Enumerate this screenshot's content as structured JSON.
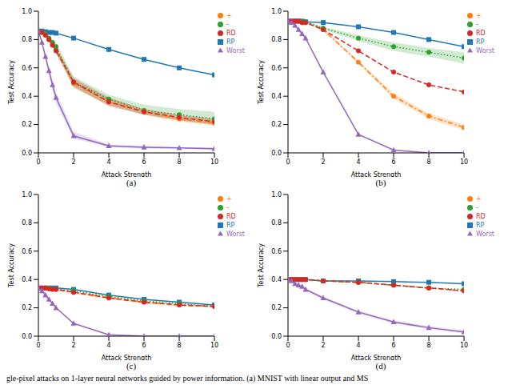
{
  "caption": "gle-pixel attacks on 1-layer neural networks guided by power information. (a) MNIST with linear output and MS",
  "chart_data": [
    {
      "type": "line",
      "title": "(a)",
      "x_label": "Attack Strength",
      "y_label": "Test Accuracy",
      "xlim": [
        0,
        10
      ],
      "xticks": [
        0,
        2,
        4,
        6,
        8,
        10
      ],
      "ylim": [
        0,
        1
      ],
      "yticks": [
        {
          "value": 0,
          "label": "0.0"
        },
        {
          "value": 0.2,
          "label": "0.2"
        },
        {
          "value": 0.4,
          "label": "0.4"
        },
        {
          "value": 0.6,
          "label": "0.6"
        },
        {
          "value": 0.8,
          "label": "0.8"
        },
        {
          "value": 1,
          "label": "1.0"
        }
      ],
      "grid": false,
      "legend": "upper right",
      "x": [
        0,
        0.2,
        0.4,
        0.6,
        0.8,
        1,
        2,
        4,
        6,
        8,
        10
      ],
      "series": [
        {
          "name": "RP",
          "color": "#1f77b4",
          "marker": "square",
          "line_style": "solid",
          "values": [
            0.86,
            0.86,
            0.855,
            0.85,
            0.85,
            0.845,
            0.81,
            0.73,
            0.66,
            0.6,
            0.55
          ]
        },
        {
          "name": "+",
          "color": "#ff7f0e",
          "marker": "circle",
          "line_style": "dashdot",
          "values": [
            0.86,
            0.85,
            0.83,
            0.8,
            0.77,
            0.73,
            0.49,
            0.36,
            0.29,
            0.24,
            0.21
          ],
          "lower": [
            0.86,
            0.85,
            0.82,
            0.79,
            0.75,
            0.71,
            0.46,
            0.33,
            0.27,
            0.22,
            0.19
          ],
          "upper": [
            0.86,
            0.85,
            0.84,
            0.81,
            0.78,
            0.75,
            0.52,
            0.39,
            0.31,
            0.26,
            0.24
          ]
        },
        {
          "name": "-",
          "color": "#2ca02c",
          "marker": "circle",
          "line_style": "dotted",
          "values": [
            0.86,
            0.85,
            0.84,
            0.81,
            0.78,
            0.75,
            0.5,
            0.38,
            0.3,
            0.27,
            0.24
          ],
          "lower": [
            0.86,
            0.85,
            0.83,
            0.8,
            0.76,
            0.72,
            0.46,
            0.34,
            0.27,
            0.23,
            0.2
          ],
          "upper": [
            0.86,
            0.86,
            0.85,
            0.82,
            0.8,
            0.78,
            0.54,
            0.41,
            0.34,
            0.31,
            0.29
          ]
        },
        {
          "name": "RD",
          "color": "#d62728",
          "marker": "circle",
          "line_style": "dashed",
          "values": [
            0.86,
            0.85,
            0.83,
            0.8,
            0.76,
            0.72,
            0.5,
            0.36,
            0.29,
            0.25,
            0.22
          ],
          "lower": [
            0.86,
            0.85,
            0.82,
            0.79,
            0.75,
            0.7,
            0.47,
            0.33,
            0.27,
            0.23,
            0.2
          ],
          "upper": [
            0.86,
            0.85,
            0.84,
            0.81,
            0.78,
            0.74,
            0.53,
            0.39,
            0.31,
            0.27,
            0.24
          ]
        },
        {
          "name": "Worst",
          "color": "#9467bd",
          "marker": "triangle",
          "line_style": "solid",
          "values": [
            0.86,
            0.78,
            0.68,
            0.58,
            0.48,
            0.39,
            0.12,
            0.05,
            0.04,
            0.035,
            0.03
          ],
          "lower": [
            0.86,
            0.77,
            0.66,
            0.55,
            0.44,
            0.35,
            0.1,
            0.04,
            0.03,
            0.03,
            0.02
          ],
          "upper": [
            0.86,
            0.79,
            0.7,
            0.61,
            0.52,
            0.43,
            0.15,
            0.06,
            0.05,
            0.04,
            0.04
          ]
        }
      ]
    },
    {
      "type": "line",
      "title": "(b)",
      "x_label": "Attack Strength",
      "y_label": "Test Accuracy",
      "xlim": [
        0,
        10
      ],
      "xticks": [
        0,
        2,
        4,
        6,
        8,
        10
      ],
      "ylim": [
        0,
        1
      ],
      "yticks": [
        {
          "value": 0,
          "label": "0.0"
        },
        {
          "value": 0.2,
          "label": "0.2"
        },
        {
          "value": 0.4,
          "label": "0.4"
        },
        {
          "value": 0.6,
          "label": "0.6"
        },
        {
          "value": 0.8,
          "label": "0.8"
        },
        {
          "value": 1,
          "label": "1.0"
        }
      ],
      "grid": false,
      "legend": "upper right",
      "x": [
        0,
        0.2,
        0.4,
        0.6,
        0.8,
        1,
        2,
        4,
        6,
        8,
        10
      ],
      "series": [
        {
          "name": "RP",
          "color": "#1f77b4",
          "marker": "square",
          "line_style": "solid",
          "values": [
            0.93,
            0.93,
            0.93,
            0.93,
            0.93,
            0.925,
            0.92,
            0.89,
            0.85,
            0.8,
            0.75
          ]
        },
        {
          "name": "+",
          "color": "#ff7f0e",
          "marker": "circle",
          "line_style": "dashdot",
          "values": [
            0.93,
            0.93,
            0.93,
            0.93,
            0.92,
            0.92,
            0.87,
            0.64,
            0.4,
            0.26,
            0.18
          ],
          "lower": [
            0.93,
            0.93,
            0.93,
            0.93,
            0.92,
            0.92,
            0.86,
            0.63,
            0.38,
            0.24,
            0.16
          ],
          "upper": [
            0.93,
            0.93,
            0.93,
            0.93,
            0.92,
            0.92,
            0.88,
            0.65,
            0.42,
            0.28,
            0.2
          ]
        },
        {
          "name": "-",
          "color": "#2ca02c",
          "marker": "circle",
          "line_style": "dotted",
          "values": [
            0.93,
            0.93,
            0.93,
            0.93,
            0.925,
            0.925,
            0.88,
            0.81,
            0.75,
            0.71,
            0.67
          ],
          "lower": [
            0.93,
            0.93,
            0.93,
            0.93,
            0.92,
            0.92,
            0.87,
            0.79,
            0.72,
            0.68,
            0.63
          ],
          "upper": [
            0.93,
            0.93,
            0.93,
            0.93,
            0.93,
            0.93,
            0.89,
            0.83,
            0.78,
            0.74,
            0.71
          ]
        },
        {
          "name": "RD",
          "color": "#d62728",
          "marker": "circle",
          "line_style": "dashed",
          "values": [
            0.93,
            0.93,
            0.93,
            0.93,
            0.92,
            0.92,
            0.87,
            0.72,
            0.57,
            0.48,
            0.43
          ]
        },
        {
          "name": "Worst",
          "color": "#9467bd",
          "marker": "triangle",
          "line_style": "solid",
          "values": [
            0.93,
            0.92,
            0.9,
            0.87,
            0.84,
            0.81,
            0.57,
            0.13,
            0.02,
            0,
            0
          ]
        }
      ]
    },
    {
      "type": "line",
      "title": "(c)",
      "x_label": "Attack Strength",
      "y_label": "Test Accuracy",
      "xlim": [
        0,
        10
      ],
      "xticks": [
        0,
        2,
        4,
        6,
        8,
        10
      ],
      "ylim": [
        0,
        1
      ],
      "yticks": [
        {
          "value": 0,
          "label": "0.0"
        },
        {
          "value": 0.2,
          "label": "0.2"
        },
        {
          "value": 0.4,
          "label": "0.4"
        },
        {
          "value": 0.6,
          "label": "0.6"
        },
        {
          "value": 0.8,
          "label": "0.8"
        },
        {
          "value": 1,
          "label": "1.0"
        }
      ],
      "grid": false,
      "legend": "upper right",
      "x": [
        0,
        0.2,
        0.4,
        0.6,
        0.8,
        1,
        2,
        4,
        6,
        8,
        10
      ],
      "series": [
        {
          "name": "RP",
          "color": "#1f77b4",
          "marker": "square",
          "line_style": "solid",
          "values": [
            0.34,
            0.34,
            0.34,
            0.34,
            0.34,
            0.34,
            0.33,
            0.29,
            0.26,
            0.24,
            0.22
          ]
        },
        {
          "name": "+",
          "color": "#ff7f0e",
          "marker": "circle",
          "line_style": "dashdot",
          "values": [
            0.34,
            0.34,
            0.34,
            0.335,
            0.33,
            0.33,
            0.31,
            0.27,
            0.24,
            0.22,
            0.21
          ],
          "lower": [
            0.34,
            0.34,
            0.33,
            0.33,
            0.32,
            0.32,
            0.3,
            0.26,
            0.23,
            0.21,
            0.2
          ],
          "upper": [
            0.34,
            0.34,
            0.35,
            0.34,
            0.34,
            0.34,
            0.32,
            0.28,
            0.25,
            0.23,
            0.22
          ]
        },
        {
          "name": "-",
          "color": "#2ca02c",
          "marker": "circle",
          "line_style": "dotted",
          "values": [
            0.34,
            0.34,
            0.34,
            0.34,
            0.335,
            0.33,
            0.32,
            0.28,
            0.25,
            0.23,
            0.21
          ]
        },
        {
          "name": "RD",
          "color": "#d62728",
          "marker": "circle",
          "line_style": "dashed",
          "values": [
            0.34,
            0.34,
            0.34,
            0.335,
            0.33,
            0.33,
            0.31,
            0.27,
            0.24,
            0.22,
            0.21
          ]
        },
        {
          "name": "Worst",
          "color": "#9467bd",
          "marker": "triangle",
          "line_style": "solid",
          "values": [
            0.34,
            0.32,
            0.29,
            0.26,
            0.23,
            0.2,
            0.09,
            0.01,
            0,
            0,
            0
          ]
        }
      ]
    },
    {
      "type": "line",
      "title": "(d)",
      "x_label": "Attack Strength",
      "y_label": "Test Accuracy",
      "xlim": [
        0,
        10
      ],
      "xticks": [
        0,
        2,
        4,
        6,
        8,
        10
      ],
      "ylim": [
        0,
        1
      ],
      "yticks": [
        {
          "value": 0,
          "label": "0.0"
        },
        {
          "value": 0.2,
          "label": "0.2"
        },
        {
          "value": 0.4,
          "label": "0.4"
        },
        {
          "value": 0.6,
          "label": "0.6"
        },
        {
          "value": 0.8,
          "label": "0.8"
        },
        {
          "value": 1,
          "label": "1.0"
        }
      ],
      "grid": false,
      "legend": "upper right",
      "x": [
        0,
        0.2,
        0.4,
        0.6,
        0.8,
        1,
        2,
        4,
        6,
        8,
        10
      ],
      "series": [
        {
          "name": "RP",
          "color": "#1f77b4",
          "marker": "square",
          "line_style": "solid",
          "values": [
            0.4,
            0.4,
            0.4,
            0.4,
            0.4,
            0.4,
            0.39,
            0.39,
            0.385,
            0.38,
            0.37
          ]
        },
        {
          "name": "+",
          "color": "#ff7f0e",
          "marker": "circle",
          "line_style": "dashdot",
          "values": [
            0.4,
            0.4,
            0.4,
            0.4,
            0.4,
            0.4,
            0.39,
            0.38,
            0.36,
            0.34,
            0.32
          ]
        },
        {
          "name": "-",
          "color": "#2ca02c",
          "marker": "circle",
          "line_style": "dotted",
          "values": [
            0.4,
            0.4,
            0.4,
            0.4,
            0.4,
            0.4,
            0.39,
            0.38,
            0.36,
            0.34,
            0.33
          ]
        },
        {
          "name": "RD",
          "color": "#d62728",
          "marker": "circle",
          "line_style": "dashed",
          "values": [
            0.4,
            0.4,
            0.4,
            0.4,
            0.4,
            0.4,
            0.39,
            0.38,
            0.36,
            0.34,
            0.32
          ]
        },
        {
          "name": "Worst",
          "color": "#9467bd",
          "marker": "triangle",
          "line_style": "solid",
          "values": [
            0.4,
            0.39,
            0.37,
            0.36,
            0.35,
            0.33,
            0.27,
            0.17,
            0.1,
            0.06,
            0.03
          ],
          "lower": [
            0.4,
            0.38,
            0.36,
            0.35,
            0.34,
            0.32,
            0.26,
            0.16,
            0.09,
            0.05,
            0.02
          ],
          "upper": [
            0.4,
            0.4,
            0.38,
            0.37,
            0.36,
            0.34,
            0.28,
            0.18,
            0.11,
            0.07,
            0.04
          ]
        }
      ]
    }
  ]
}
